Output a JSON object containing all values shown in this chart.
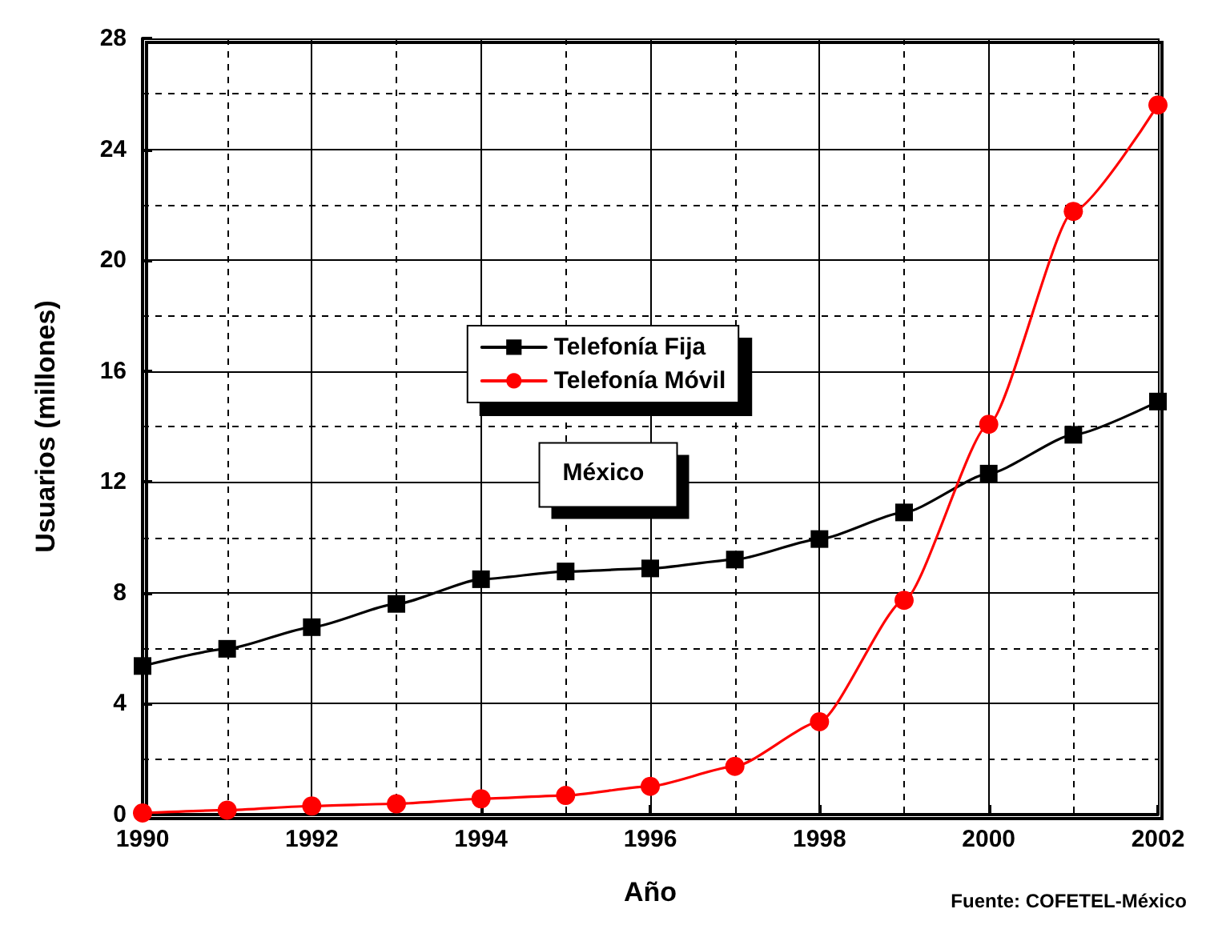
{
  "chart_data": {
    "type": "line",
    "xlabel": "Año",
    "ylabel": "Usuarios (millones)",
    "x": [
      1990,
      1991,
      1992,
      1993,
      1994,
      1995,
      1996,
      1997,
      1998,
      1999,
      2000,
      2001,
      2002
    ],
    "series": [
      {
        "name": "Telefonía Fija",
        "color": "#000000",
        "marker": "square",
        "values": [
          5.36,
          5.98,
          6.76,
          7.6,
          8.49,
          8.77,
          8.88,
          9.2,
          9.94,
          10.9,
          12.3,
          13.7,
          14.9
        ]
      },
      {
        "name": "Telefonía Móvil",
        "color": "#ff0000",
        "marker": "circle",
        "values": [
          0.06,
          0.16,
          0.31,
          0.39,
          0.57,
          0.69,
          1.02,
          1.74,
          3.35,
          7.73,
          14.08,
          21.76,
          25.6
        ]
      }
    ],
    "xlim": [
      1990,
      2002
    ],
    "xticks": [
      1990,
      1992,
      1994,
      1996,
      1998,
      2000,
      2002
    ],
    "ylim": [
      0,
      28
    ],
    "yticks": [
      0,
      4,
      8,
      12,
      16,
      20,
      24,
      28
    ],
    "grid": true,
    "legend": "center",
    "line_style": "solid",
    "annotations": [
      "México",
      "Fuente: COFETEL-México"
    ]
  }
}
